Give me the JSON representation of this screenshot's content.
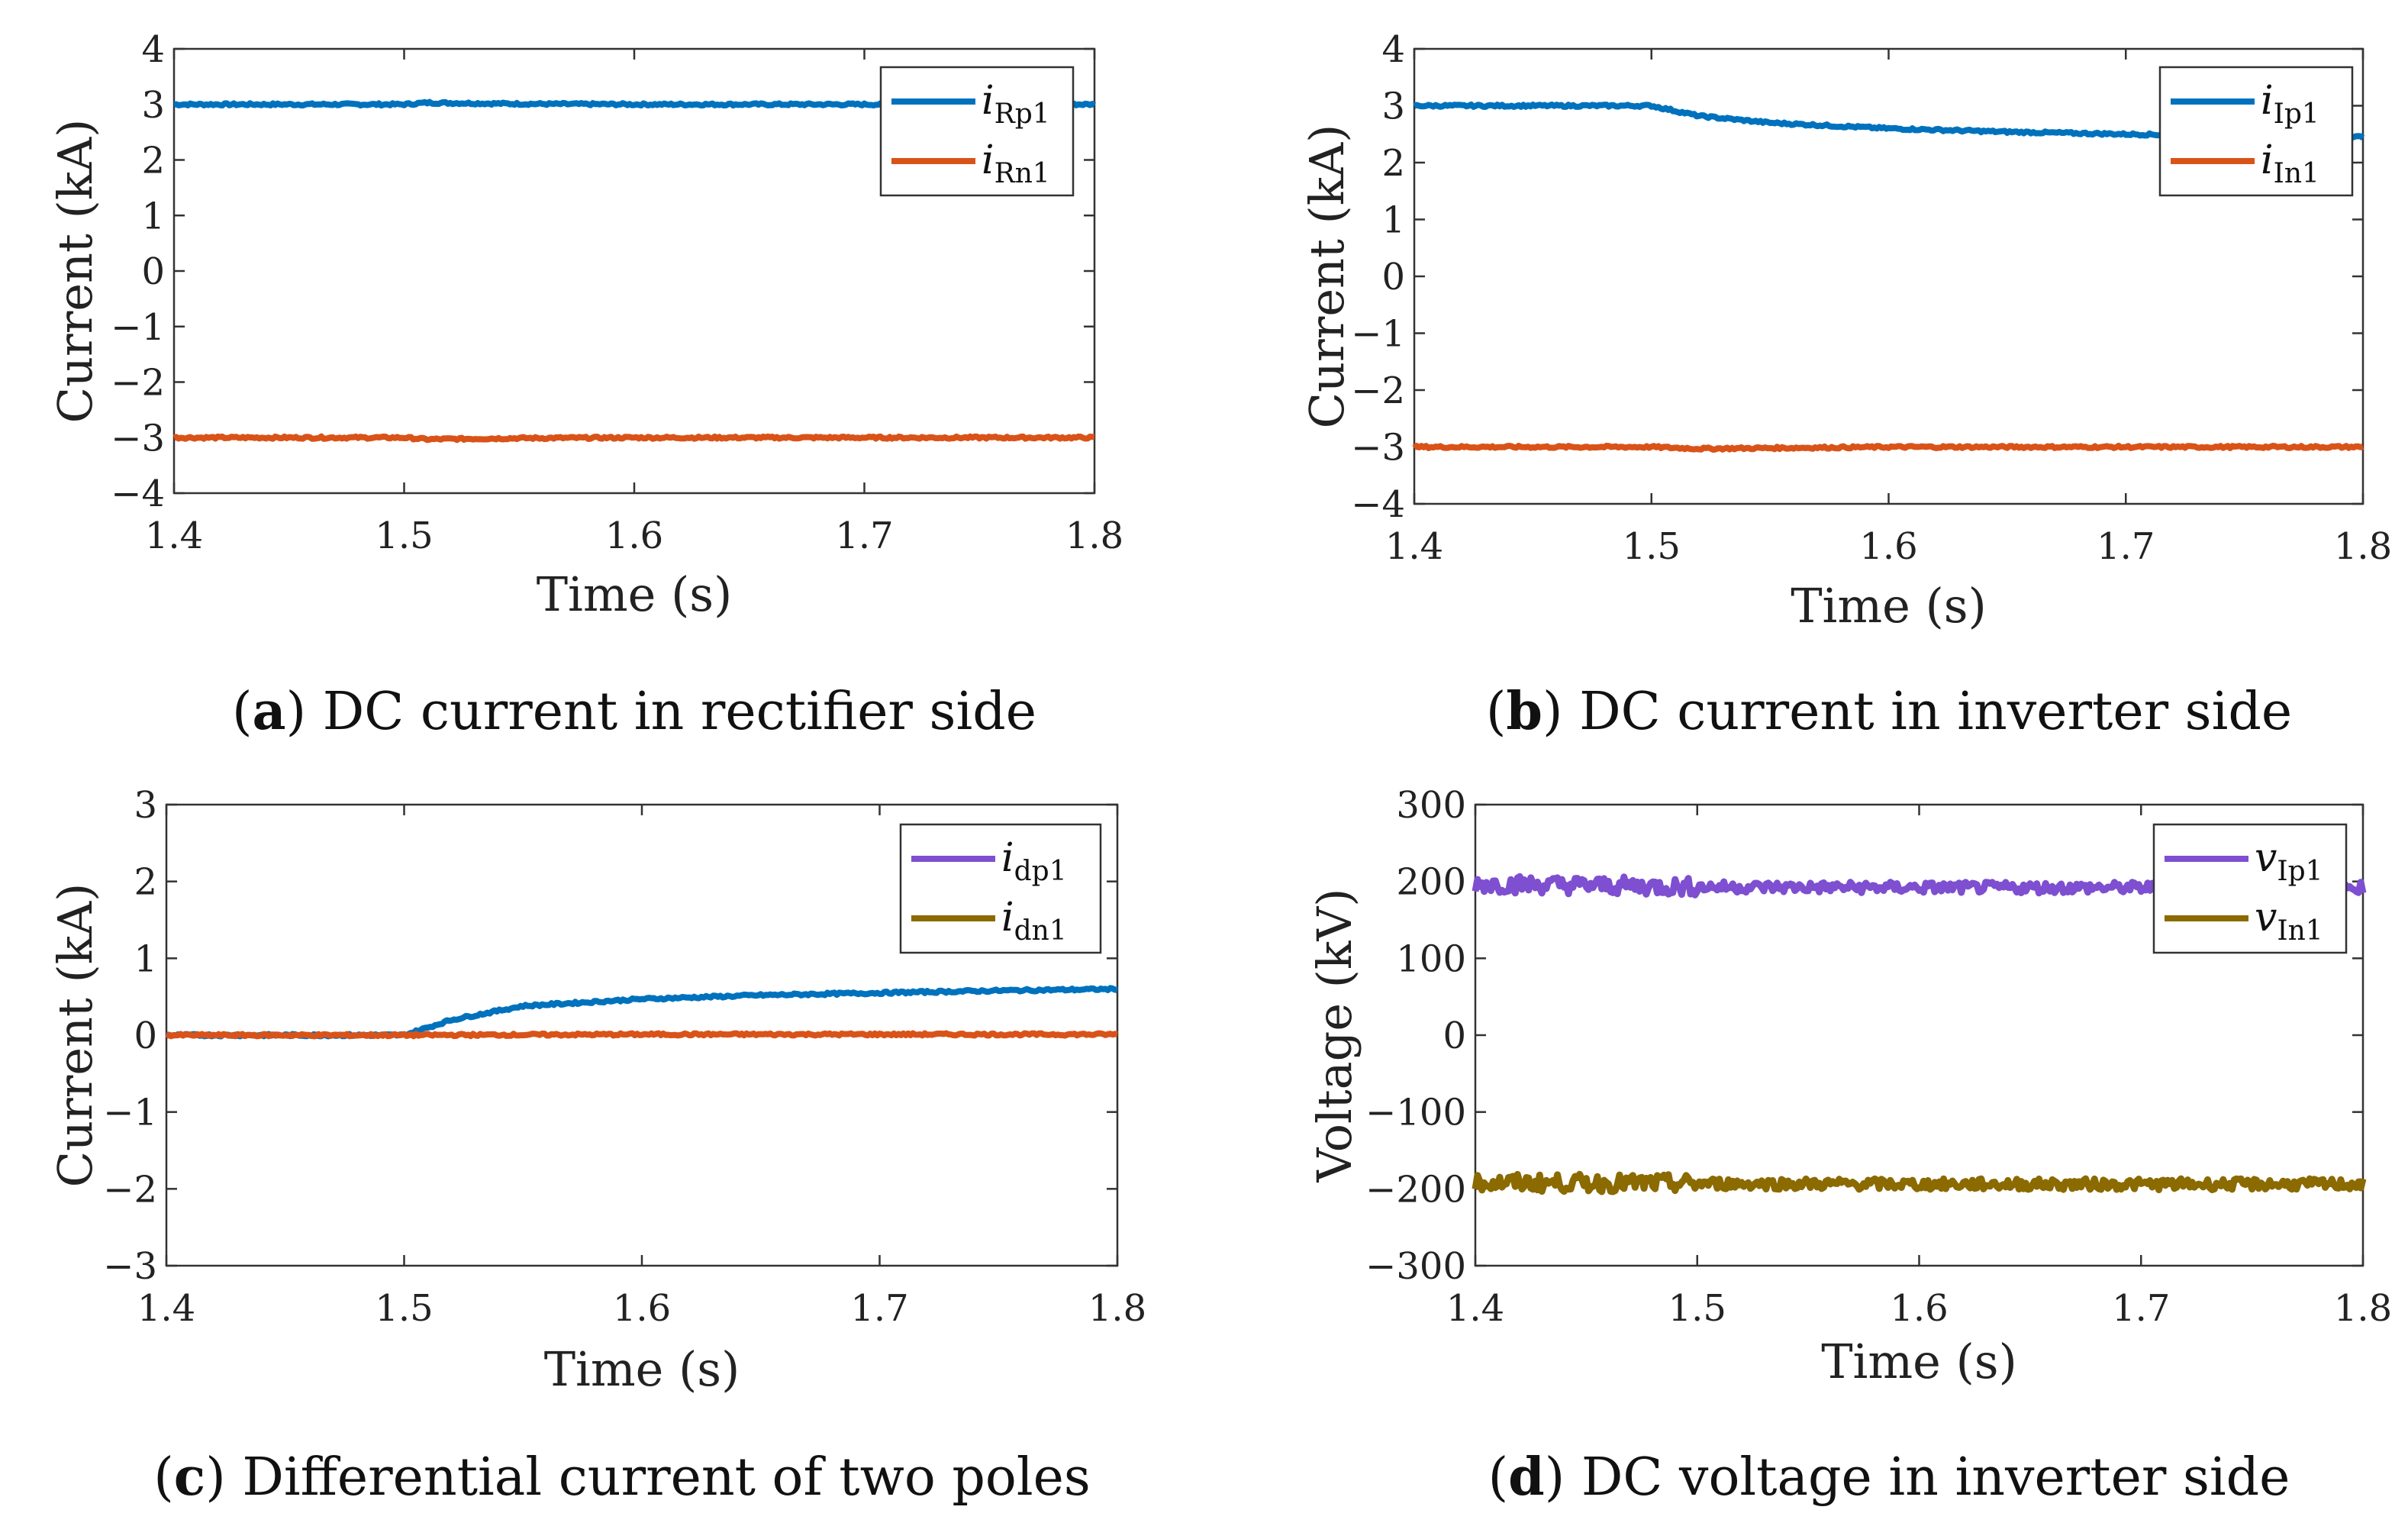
{
  "chart_data": [
    {
      "type": "line",
      "panel": "a",
      "caption_letter": "a",
      "caption_text": "DC current in rectifier side",
      "xlabel": "Time (s)",
      "ylabel": "Current (kA)",
      "xlim": [
        1.4,
        1.8
      ],
      "ylim": [
        -4,
        4
      ],
      "xticks": [
        "1.4",
        "1.5",
        "1.6",
        "1.7",
        "1.8"
      ],
      "yticks": [
        "−4",
        "−3",
        "−2",
        "−1",
        "0",
        "1",
        "2",
        "3",
        "4"
      ],
      "legend_position": "top-right",
      "series": [
        {
          "name": "iRp1",
          "name_main": "i",
          "name_sub": "Rp1",
          "color": "#0072BD",
          "x": [
            1.4,
            1.5,
            1.51,
            1.55,
            1.6,
            1.7,
            1.8
          ],
          "y": [
            3.0,
            3.0,
            3.03,
            3.01,
            3.0,
            3.0,
            3.0
          ]
        },
        {
          "name": "iRn1",
          "name_main": "i",
          "name_sub": "Rn1",
          "color": "#D95319",
          "x": [
            1.4,
            1.5,
            1.51,
            1.55,
            1.6,
            1.7,
            1.8
          ],
          "y": [
            -3.0,
            -3.0,
            -3.03,
            -3.01,
            -3.0,
            -3.0,
            -3.0
          ]
        }
      ]
    },
    {
      "type": "line",
      "panel": "b",
      "caption_letter": "b",
      "caption_text": "DC current in inverter side",
      "xlabel": "Time (s)",
      "ylabel": "Current (kA)",
      "xlim": [
        1.4,
        1.8
      ],
      "ylim": [
        -4,
        4
      ],
      "xticks": [
        "1.4",
        "1.5",
        "1.6",
        "1.7",
        "1.8"
      ],
      "yticks": [
        "−4",
        "−3",
        "−2",
        "−1",
        "0",
        "1",
        "2",
        "3",
        "4"
      ],
      "legend_position": "top-right",
      "series": [
        {
          "name": "iIp1",
          "name_main": "i",
          "name_sub": "Ip1",
          "color": "#0072BD",
          "x": [
            1.4,
            1.5,
            1.52,
            1.55,
            1.6,
            1.65,
            1.7,
            1.75,
            1.8
          ],
          "y": [
            3.0,
            3.0,
            2.82,
            2.7,
            2.6,
            2.54,
            2.5,
            2.47,
            2.45
          ]
        },
        {
          "name": "iIn1",
          "name_main": "i",
          "name_sub": "In1",
          "color": "#D95319",
          "x": [
            1.4,
            1.5,
            1.52,
            1.6,
            1.7,
            1.8
          ],
          "y": [
            -3.0,
            -3.0,
            -3.03,
            -3.0,
            -3.0,
            -3.0
          ]
        }
      ]
    },
    {
      "type": "line",
      "panel": "c",
      "caption_letter": "c",
      "caption_text": "Differential current of two poles",
      "xlabel": "Time (s)",
      "ylabel": "Current (kA)",
      "xlim": [
        1.4,
        1.8
      ],
      "ylim": [
        -3,
        3
      ],
      "xticks": [
        "1.4",
        "1.5",
        "1.6",
        "1.7",
        "1.8"
      ],
      "yticks": [
        "−3",
        "−2",
        "−1",
        "0",
        "1",
        "2",
        "3"
      ],
      "legend_position": "top-right",
      "series": [
        {
          "name": "idp1",
          "name_main": "i",
          "name_sub": "dp1",
          "color": "#7E4FD0",
          "line_color": "#0072BD",
          "x": [
            1.4,
            1.5,
            1.52,
            1.55,
            1.6,
            1.65,
            1.7,
            1.75,
            1.8
          ],
          "y": [
            0,
            0,
            0.2,
            0.38,
            0.47,
            0.52,
            0.55,
            0.58,
            0.6
          ]
        },
        {
          "name": "idn1",
          "name_main": "i",
          "name_sub": "dn1",
          "color": "#8B6A00",
          "line_color": "#D95319",
          "x": [
            1.4,
            1.5,
            1.6,
            1.7,
            1.8
          ],
          "y": [
            0,
            0,
            0.01,
            0.01,
            0.01
          ]
        }
      ]
    },
    {
      "type": "line",
      "panel": "d",
      "caption_letter": "d",
      "caption_text": "DC voltage in inverter side",
      "xlabel": "Time (s)",
      "ylabel": "Voltage (kV)",
      "xlim": [
        1.4,
        1.8
      ],
      "ylim": [
        -300,
        300
      ],
      "xticks": [
        "1.4",
        "1.5",
        "1.6",
        "1.7",
        "1.8"
      ],
      "yticks": [
        "−300",
        "−200",
        "−100",
        "0",
        "100",
        "200",
        "300"
      ],
      "legend_position": "top-right",
      "series": [
        {
          "name": "vIp1",
          "name_main": "v",
          "name_sub": "Ip1",
          "color": "#7E4FD0",
          "x": [
            1.4,
            1.5,
            1.6,
            1.7,
            1.8
          ],
          "y": [
            197,
            193,
            192,
            192,
            192
          ],
          "noisy": true
        },
        {
          "name": "vIn1",
          "name_main": "v",
          "name_sub": "In1",
          "color": "#8B6A00",
          "x": [
            1.4,
            1.5,
            1.6,
            1.7,
            1.8
          ],
          "y": [
            -192,
            -193,
            -194,
            -194,
            -194
          ],
          "noisy": true
        }
      ]
    }
  ]
}
